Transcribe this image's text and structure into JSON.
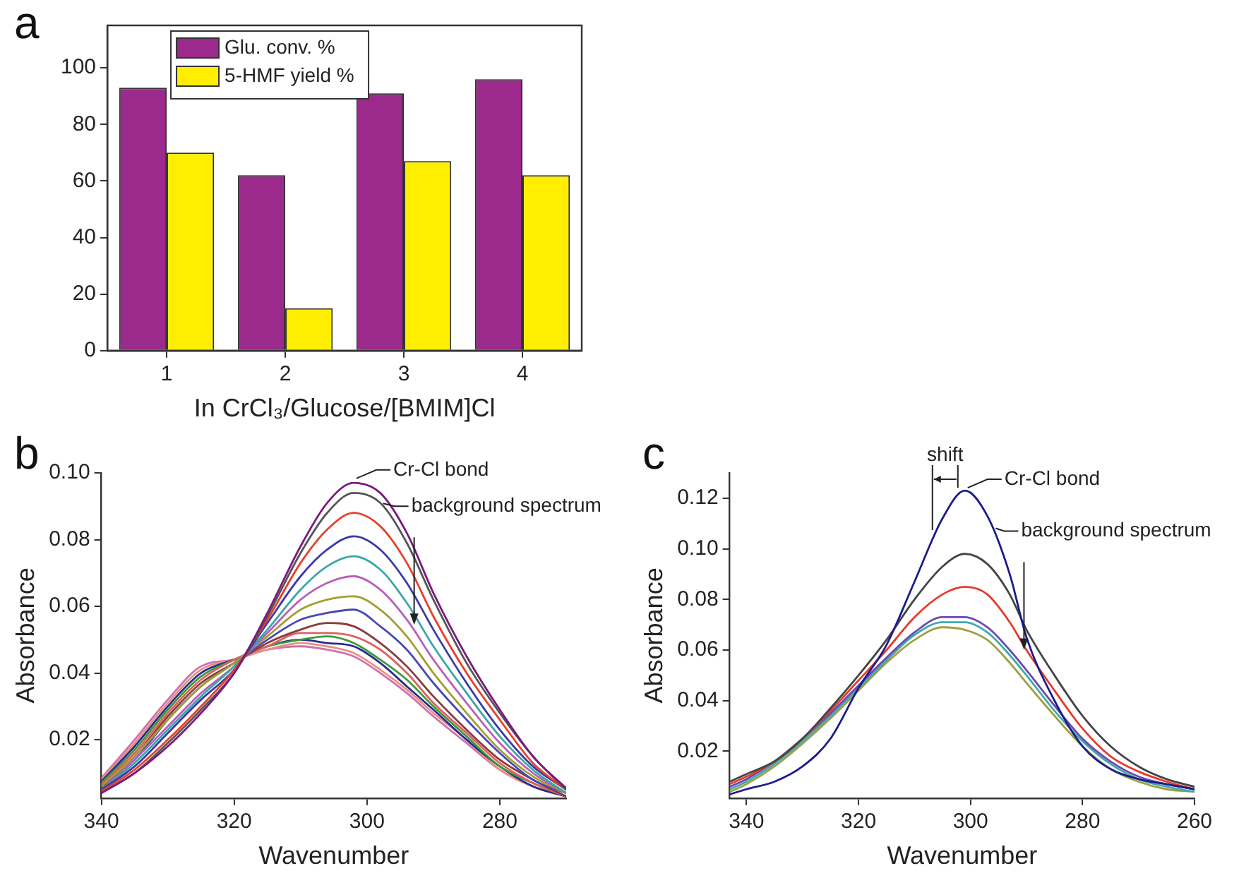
{
  "chart_data": [
    {
      "type": "bar",
      "title": "a",
      "xlabel": "In CrCl₃/Glucose/[BMIM]Cl",
      "categories": [
        "1",
        "2",
        "3",
        "4"
      ],
      "series": [
        {
          "name": "Glu. conv. %",
          "color": "#9b2a8c",
          "values": [
            93,
            62,
            91,
            96
          ]
        },
        {
          "name": "5-HMF yield %",
          "color": "#ffee00",
          "values": [
            70,
            15,
            67,
            62
          ]
        }
      ],
      "ylim": [
        0,
        115
      ],
      "yticks": [
        0,
        20,
        40,
        60,
        80,
        100
      ],
      "grid": false,
      "legend": "top left"
    },
    {
      "type": "line",
      "title": "b",
      "xlabel": "Wavenumber",
      "ylabel": "Absorbance",
      "x": [
        340,
        335,
        330,
        325,
        320,
        315,
        310,
        306,
        302,
        298,
        294,
        290,
        285,
        280,
        275,
        270
      ],
      "series": [
        {
          "color": "#7b1a7e",
          "values": [
            0.004,
            0.01,
            0.018,
            0.028,
            0.04,
            0.058,
            0.078,
            0.091,
            0.097,
            0.094,
            0.082,
            0.064,
            0.045,
            0.029,
            0.015,
            0.0055
          ]
        },
        {
          "color": "#555555",
          "values": [
            0.004,
            0.01,
            0.019,
            0.029,
            0.04,
            0.057,
            0.076,
            0.088,
            0.094,
            0.091,
            0.079,
            0.062,
            0.043,
            0.028,
            0.015,
            0.005
          ]
        },
        {
          "color": "#e8402a",
          "values": [
            0.0045,
            0.011,
            0.02,
            0.03,
            0.041,
            0.056,
            0.073,
            0.083,
            0.088,
            0.084,
            0.073,
            0.057,
            0.04,
            0.026,
            0.013,
            0.005
          ]
        },
        {
          "color": "#3a3aa8",
          "values": [
            0.005,
            0.012,
            0.022,
            0.032,
            0.041,
            0.055,
            0.069,
            0.077,
            0.081,
            0.077,
            0.067,
            0.053,
            0.037,
            0.023,
            0.012,
            0.005
          ]
        },
        {
          "color": "#3aa6a6",
          "values": [
            0.005,
            0.013,
            0.023,
            0.033,
            0.042,
            0.053,
            0.065,
            0.072,
            0.075,
            0.071,
            0.061,
            0.048,
            0.034,
            0.021,
            0.011,
            0.004
          ]
        },
        {
          "color": "#b860b8",
          "values": [
            0.005,
            0.014,
            0.024,
            0.034,
            0.042,
            0.052,
            0.062,
            0.067,
            0.069,
            0.065,
            0.056,
            0.044,
            0.031,
            0.019,
            0.01,
            0.004
          ]
        },
        {
          "color": "#a0a030",
          "values": [
            0.006,
            0.015,
            0.026,
            0.036,
            0.043,
            0.051,
            0.059,
            0.062,
            0.063,
            0.059,
            0.051,
            0.04,
            0.028,
            0.017,
            0.009,
            0.004
          ]
        },
        {
          "color": "#4848b8",
          "values": [
            0.0055,
            0.014,
            0.026,
            0.036,
            0.043,
            0.05,
            0.056,
            0.058,
            0.059,
            0.054,
            0.047,
            0.037,
            0.026,
            0.016,
            0.008,
            0.004
          ]
        },
        {
          "color": "#8b3a3a",
          "values": [
            0.006,
            0.015,
            0.027,
            0.037,
            0.043,
            0.049,
            0.053,
            0.055,
            0.054,
            0.049,
            0.042,
            0.033,
            0.023,
            0.014,
            0.008,
            0.003
          ]
        },
        {
          "color": "#e06060",
          "values": [
            0.0065,
            0.016,
            0.028,
            0.038,
            0.044,
            0.048,
            0.052,
            0.052,
            0.051,
            0.047,
            0.04,
            0.031,
            0.022,
            0.013,
            0.007,
            0.003
          ]
        },
        {
          "color": "#3a9a3a",
          "values": [
            0.007,
            0.017,
            0.029,
            0.039,
            0.044,
            0.048,
            0.05,
            0.051,
            0.049,
            0.044,
            0.038,
            0.03,
            0.021,
            0.012,
            0.007,
            0.003
          ]
        },
        {
          "color": "#2a2a90",
          "values": [
            0.0075,
            0.018,
            0.03,
            0.04,
            0.044,
            0.048,
            0.05,
            0.049,
            0.048,
            0.043,
            0.036,
            0.029,
            0.02,
            0.012,
            0.006,
            0.003
          ]
        },
        {
          "color": "#e89080",
          "values": [
            0.008,
            0.019,
            0.031,
            0.041,
            0.044,
            0.047,
            0.049,
            0.048,
            0.046,
            0.041,
            0.035,
            0.028,
            0.02,
            0.011,
            0.006,
            0.003
          ]
        },
        {
          "color": "#d070b0",
          "values": [
            0.0085,
            0.02,
            0.032,
            0.042,
            0.044,
            0.047,
            0.048,
            0.047,
            0.045,
            0.04,
            0.034,
            0.027,
            0.019,
            0.011,
            0.006,
            0.003
          ]
        }
      ],
      "xlim": [
        340,
        270
      ],
      "xticks": [
        340,
        320,
        300,
        280
      ],
      "ylim": [
        0.0025,
        0.1
      ],
      "yticks": [
        {
          "value": 0.02,
          "label": "0.02"
        },
        {
          "value": 0.04,
          "label": "0.04"
        },
        {
          "value": 0.06,
          "label": "0.06"
        },
        {
          "value": 0.08,
          "label": "0.08"
        },
        {
          "value": 0.1,
          "label": "0.10"
        }
      ],
      "grid": false,
      "legend": false,
      "marker": "none",
      "line_style": "solid",
      "annotations": [
        {
          "text": "Cr-Cl bond",
          "x": 302,
          "y": 0.0975
        },
        {
          "text": "background spectrum",
          "x": 298,
          "y": 0.09
        }
      ]
    },
    {
      "type": "line",
      "title": "c",
      "xlabel": "Wavenumber",
      "ylabel": "Absorbance",
      "x": [
        343,
        340,
        335,
        330,
        325,
        320,
        315,
        310,
        305,
        301,
        297,
        293,
        290,
        285,
        280,
        275,
        270,
        265,
        260
      ],
      "series": [
        {
          "color": "#1c1c8c",
          "values": [
            0.003,
            0.005,
            0.008,
            0.014,
            0.025,
            0.045,
            0.062,
            0.087,
            0.112,
            0.123,
            0.113,
            0.09,
            0.065,
            0.04,
            0.022,
            0.013,
            0.009,
            0.007,
            0.005
          ]
        },
        {
          "color": "#444444",
          "values": [
            0.008,
            0.011,
            0.016,
            0.025,
            0.037,
            0.05,
            0.064,
            0.08,
            0.093,
            0.098,
            0.094,
            0.082,
            0.068,
            0.05,
            0.034,
            0.022,
            0.014,
            0.009,
            0.006
          ]
        },
        {
          "color": "#e83a2a",
          "values": [
            0.007,
            0.01,
            0.016,
            0.025,
            0.036,
            0.048,
            0.06,
            0.073,
            0.082,
            0.085,
            0.082,
            0.071,
            0.06,
            0.044,
            0.029,
            0.018,
            0.012,
            0.008,
            0.005
          ]
        },
        {
          "color": "#6a4ab0",
          "values": [
            0.006,
            0.009,
            0.016,
            0.025,
            0.035,
            0.046,
            0.057,
            0.067,
            0.073,
            0.073,
            0.069,
            0.06,
            0.052,
            0.038,
            0.025,
            0.016,
            0.01,
            0.007,
            0.005
          ]
        },
        {
          "color": "#40a8b0",
          "values": [
            0.005,
            0.008,
            0.015,
            0.024,
            0.034,
            0.045,
            0.056,
            0.066,
            0.071,
            0.071,
            0.067,
            0.058,
            0.05,
            0.036,
            0.024,
            0.015,
            0.009,
            0.006,
            0.004
          ]
        },
        {
          "color": "#a0a040",
          "values": [
            0.004,
            0.007,
            0.014,
            0.023,
            0.033,
            0.044,
            0.055,
            0.064,
            0.069,
            0.068,
            0.064,
            0.055,
            0.047,
            0.034,
            0.022,
            0.013,
            0.008,
            0.005,
            0.004
          ]
        }
      ],
      "xlim": [
        343,
        260
      ],
      "xticks": [
        340,
        320,
        300,
        280,
        260
      ],
      "ylim": [
        0.0015,
        0.13
      ],
      "yticks": [
        {
          "value": 0.02,
          "label": "0.02"
        },
        {
          "value": 0.04,
          "label": "0.04"
        },
        {
          "value": 0.06,
          "label": "0.06"
        },
        {
          "value": 0.08,
          "label": "0.08"
        },
        {
          "value": 0.1,
          "label": "0.10"
        },
        {
          "value": 0.12,
          "label": "0.12"
        }
      ],
      "grid": false,
      "legend": false,
      "marker": "none",
      "line_style": "solid",
      "annotations": [
        {
          "text": "shift",
          "x": 301,
          "y": 0.123
        },
        {
          "text": "Cr-Cl bond",
          "x": 301,
          "y": 0.123
        },
        {
          "text": "background spectrum",
          "x": 296,
          "y": 0.107
        }
      ]
    }
  ]
}
